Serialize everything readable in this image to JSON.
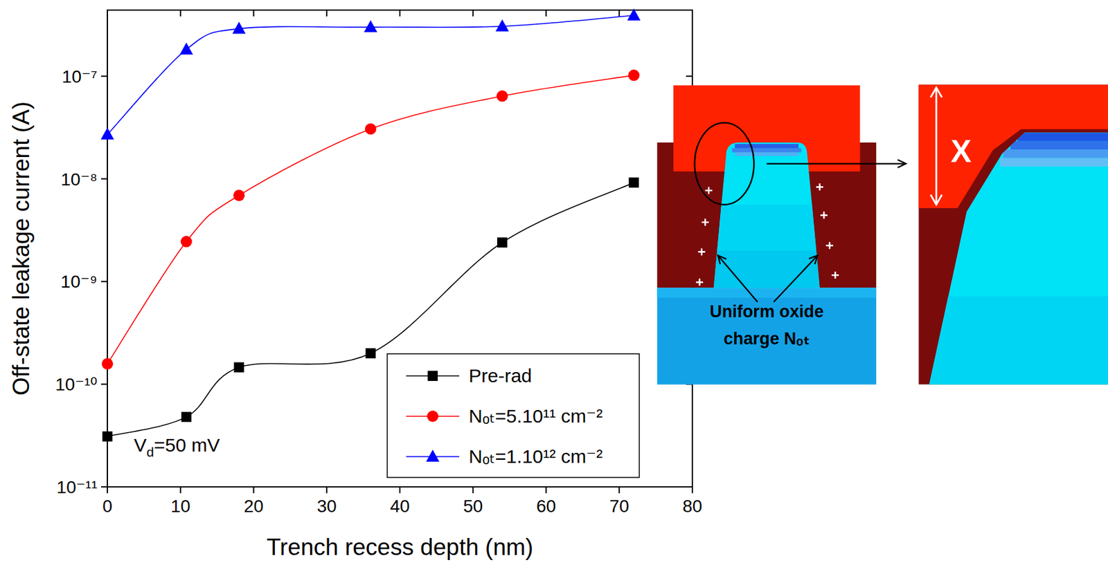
{
  "chart_data": {
    "type": "line",
    "xlabel": "Trench recess depth (nm)",
    "ylabel": "Off-state leakage current (A)",
    "x": [
      0,
      10.8,
      18,
      36,
      54,
      72
    ],
    "series": [
      {
        "name": "Pre-rad",
        "color": "#000000",
        "marker": "square",
        "values": [
          3.1e-11,
          4.8e-11,
          1.46e-10,
          2e-10,
          2.4e-09,
          9.2e-09
        ]
      },
      {
        "name": "Nₒₜ=5.10¹¹ cm⁻²",
        "color": "#ff0000",
        "marker": "circle",
        "values": [
          1.58e-10,
          2.45e-09,
          6.9e-09,
          3.06e-08,
          6.4e-08,
          1.02e-07
        ]
      },
      {
        "name": "Nₒₜ=1.10¹² cm⁻²",
        "color": "#0000ff",
        "marker": "triangle",
        "values": [
          2.7e-08,
          1.82e-07,
          2.9e-07,
          3e-07,
          3.06e-07,
          3.9e-07
        ]
      }
    ],
    "xlim": [
      0,
      80
    ],
    "xticks": [
      0,
      10,
      20,
      30,
      40,
      50,
      60,
      70,
      80
    ],
    "ylim": [
      1e-11,
      4.4e-07
    ],
    "yticks": [
      {
        "value": 1e-11,
        "label": "10⁻¹¹"
      },
      {
        "value": 1e-10,
        "label": "10⁻¹⁰"
      },
      {
        "value": 1e-09,
        "label": "10⁻⁹"
      },
      {
        "value": 1e-08,
        "label": "10⁻⁸"
      },
      {
        "value": 1e-07,
        "label": "10⁻⁷"
      }
    ],
    "log": "y",
    "legend": "lower right",
    "annotations": [
      {
        "text": "Vd=50 mV"
      },
      {
        "text": "Uniform oxide charge Nₒₜ"
      },
      {
        "text": "X"
      }
    ]
  }
}
